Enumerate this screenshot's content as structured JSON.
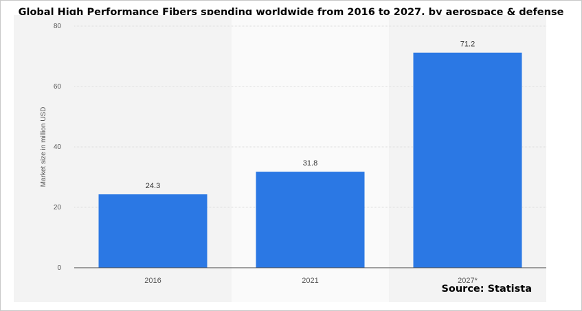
{
  "chart_data": {
    "type": "bar",
    "title": "Global High Performance Fibers spending worldwide from 2016 to 2027, by aerospace & defense",
    "xlabel": "",
    "ylabel": "Market size in million USD",
    "categories": [
      "2016",
      "2021",
      "2027*"
    ],
    "values": [
      24.3,
      31.8,
      71.2
    ],
    "value_labels": [
      "24.3",
      "31.8",
      "71.2"
    ],
    "ylim": [
      0,
      80
    ],
    "yticks": [
      0,
      20,
      40,
      60,
      80
    ],
    "grid": true,
    "bar_color": "#2b78e4",
    "highlight_band": "2021"
  },
  "source_text": "Source: Statista"
}
